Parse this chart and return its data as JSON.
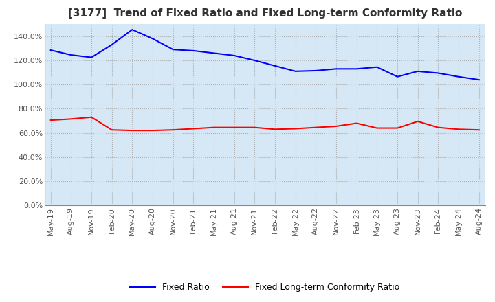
{
  "title": "[3177]  Trend of Fixed Ratio and Fixed Long-term Conformity Ratio",
  "x_labels": [
    "May-19",
    "Aug-19",
    "Nov-19",
    "Feb-20",
    "May-20",
    "Aug-20",
    "Nov-20",
    "Feb-21",
    "May-21",
    "Aug-21",
    "Nov-21",
    "Feb-22",
    "May-22",
    "Aug-22",
    "Nov-22",
    "Feb-23",
    "May-23",
    "Aug-23",
    "Nov-23",
    "Feb-24",
    "May-24",
    "Aug-24"
  ],
  "fixed_ratio": [
    1.285,
    1.245,
    1.225,
    1.33,
    1.455,
    1.38,
    1.29,
    1.28,
    1.26,
    1.24,
    1.2,
    1.155,
    1.11,
    1.115,
    1.13,
    1.13,
    1.145,
    1.065,
    1.11,
    1.095,
    1.065,
    1.04
  ],
  "fixed_lt_ratio": [
    0.705,
    0.715,
    0.73,
    0.625,
    0.62,
    0.62,
    0.625,
    0.635,
    0.645,
    0.645,
    0.645,
    0.63,
    0.635,
    0.645,
    0.655,
    0.68,
    0.64,
    0.64,
    0.695,
    0.645,
    0.63,
    0.625
  ],
  "fixed_ratio_color": "#0000FF",
  "fixed_lt_ratio_color": "#FF0000",
  "ylim": [
    0.0,
    1.5
  ],
  "yticks": [
    0.0,
    0.2,
    0.4,
    0.6,
    0.8,
    1.0,
    1.2,
    1.4
  ],
  "bg_color": "#FFFFFF",
  "plot_bg_color": "#D6E8F5",
  "grid_color": "#AAAAAA",
  "tick_color": "#555555",
  "title_fontsize": 11,
  "tick_fontsize": 8,
  "legend_fixed_ratio": "Fixed Ratio",
  "legend_fixed_lt_ratio": "Fixed Long-term Conformity Ratio"
}
